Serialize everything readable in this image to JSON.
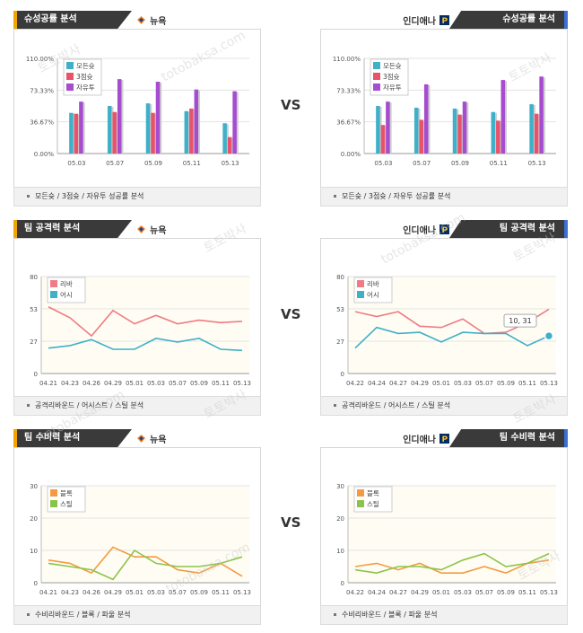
{
  "vs_label": "VS",
  "watermark": {
    "text1": "토토박사",
    "text2": "totobaksa.com"
  },
  "teams": {
    "left": "뉴욕",
    "right": "인디애나"
  },
  "colors": {
    "accent_left": "#f2a500",
    "accent_right": "#3b6fd1",
    "tab_bg": "#3a3a3a"
  },
  "sections": [
    {
      "title": "슈성공률 분석",
      "footer": "모든슛 / 3점슛 / 자유투 성공률 분석"
    },
    {
      "title": "팀 공격력 분석",
      "footer": "공격리바운드 / 어시스트 / 스틸 분석"
    },
    {
      "title": "팀 수비력 분석",
      "footer": "수비리바운드 / 블록 / 파울 분석"
    }
  ],
  "chart_data": [
    {
      "id": "shooting-left",
      "type": "bar",
      "categories": [
        "05.03",
        "05.07",
        "05.09",
        "05.11",
        "05.13"
      ],
      "y_ticks": [
        "0.00%",
        "36.67%",
        "73.33%",
        "110.00%"
      ],
      "ylim": [
        0,
        110
      ],
      "legend_placement": "top-left",
      "series": [
        {
          "name": "모든슛",
          "color": "#3fb0c8",
          "values": [
            47,
            55,
            58,
            49,
            35
          ]
        },
        {
          "name": "3점슛",
          "color": "#e8536a",
          "values": [
            46,
            48,
            47,
            52,
            19
          ]
        },
        {
          "name": "자유투",
          "color": "#a64ccf",
          "values": [
            60,
            86,
            83,
            74,
            72
          ]
        }
      ]
    },
    {
      "id": "shooting-right",
      "type": "bar",
      "categories": [
        "05.03",
        "05.07",
        "05.09",
        "05.11",
        "05.13"
      ],
      "y_ticks": [
        "0.00%",
        "36.67%",
        "73.33%",
        "110.00%"
      ],
      "ylim": [
        0,
        110
      ],
      "legend_placement": "top-left",
      "series": [
        {
          "name": "모든슛",
          "color": "#3fb0c8",
          "values": [
            55,
            53,
            52,
            48,
            57
          ]
        },
        {
          "name": "3점슛",
          "color": "#e8536a",
          "values": [
            33,
            39,
            45,
            38,
            46
          ]
        },
        {
          "name": "자유투",
          "color": "#a64ccf",
          "values": [
            60,
            80,
            60,
            85,
            89
          ]
        }
      ]
    },
    {
      "id": "offense-left",
      "type": "line",
      "categories": [
        "04.21",
        "04.23",
        "04.26",
        "04.29",
        "05.01",
        "05.03",
        "05.07",
        "05.09",
        "05.11",
        "05.13"
      ],
      "y_ticks": [
        "0",
        "27",
        "53",
        "80"
      ],
      "ylim": [
        0,
        80
      ],
      "legend_placement": "top-left",
      "series": [
        {
          "name": "리바",
          "color": "#ee7b85",
          "values": [
            55,
            46,
            31,
            52,
            41,
            48,
            41,
            44,
            42,
            43
          ]
        },
        {
          "name": "어시",
          "color": "#3fb0c8",
          "values": [
            21,
            23,
            28,
            20,
            20,
            29,
            26,
            29,
            20,
            19
          ]
        }
      ]
    },
    {
      "id": "offense-right",
      "type": "line",
      "categories": [
        "04.22",
        "04.24",
        "04.27",
        "04.29",
        "05.01",
        "05.03",
        "05.07",
        "05.09",
        "05.11",
        "05.13"
      ],
      "y_ticks": [
        "0",
        "27",
        "53",
        "80"
      ],
      "ylim": [
        0,
        80
      ],
      "legend_placement": "top-left",
      "tooltip": "10, 31",
      "series": [
        {
          "name": "리바",
          "color": "#ee7b85",
          "values": [
            51,
            47,
            51,
            39,
            38,
            45,
            33,
            34,
            42,
            53
          ]
        },
        {
          "name": "어시",
          "color": "#3fb0c8",
          "values": [
            21,
            38,
            33,
            34,
            26,
            34,
            33,
            33,
            23,
            31
          ]
        }
      ]
    },
    {
      "id": "defense-left",
      "type": "line",
      "categories": [
        "04.21",
        "04.23",
        "04.26",
        "04.29",
        "05.01",
        "05.03",
        "05.07",
        "05.09",
        "05.11",
        "05.13"
      ],
      "y_ticks": [
        "0",
        "10",
        "20",
        "30"
      ],
      "ylim": [
        0,
        30
      ],
      "legend_placement": "top-left",
      "series": [
        {
          "name": "블록",
          "color": "#f39a42",
          "values": [
            7,
            6,
            3,
            11,
            8,
            8,
            4,
            3,
            6,
            2
          ]
        },
        {
          "name": "스틸",
          "color": "#8bc34a",
          "values": [
            6,
            5,
            4,
            1,
            10,
            6,
            5,
            5,
            6,
            8
          ]
        }
      ]
    },
    {
      "id": "defense-right",
      "type": "line",
      "categories": [
        "04.22",
        "04.24",
        "04.27",
        "04.29",
        "05.01",
        "05.03",
        "05.07",
        "05.09",
        "05.11",
        "05.13"
      ],
      "y_ticks": [
        "0",
        "10",
        "20",
        "30"
      ],
      "ylim": [
        0,
        30
      ],
      "legend_placement": "top-left",
      "series": [
        {
          "name": "블록",
          "color": "#f39a42",
          "values": [
            5,
            6,
            4,
            6,
            3,
            3,
            5,
            3,
            6,
            7
          ]
        },
        {
          "name": "스틸",
          "color": "#8bc34a",
          "values": [
            4,
            3,
            5,
            5,
            4,
            7,
            9,
            5,
            6,
            9
          ]
        }
      ]
    }
  ]
}
